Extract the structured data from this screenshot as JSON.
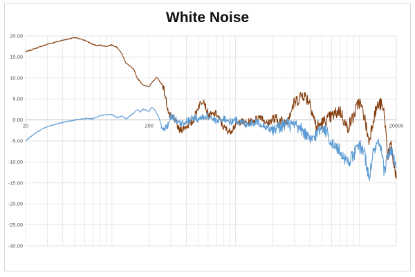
{
  "title": "White Noise",
  "colors": {
    "series_a": "#843C0C",
    "series_b": "#5B9BD5",
    "grid": "#d9d9d9",
    "axis": "#bfbfbf"
  },
  "chart_data": {
    "type": "line",
    "title": "White Noise",
    "xlabel": "",
    "ylabel": "",
    "x_scale": "log",
    "xlim": [
      20,
      20000
    ],
    "ylim": [
      -30,
      20
    ],
    "x_ticks": [
      "20",
      "200",
      "20000"
    ],
    "y_ticks": [
      "20.00",
      "15.00",
      "10.00",
      "5.00",
      "0.00",
      "-5.00",
      "-10.00",
      "-15.00",
      "-20.00",
      "-25.00",
      "-30.00"
    ],
    "grid": true,
    "legend": "none",
    "series": [
      {
        "color": "#843C0C",
        "x": [
          20,
          25,
          30,
          40,
          50,
          60,
          70,
          75,
          80,
          90,
          100,
          110,
          120,
          130,
          140,
          150,
          160,
          180,
          200,
          230,
          260,
          290,
          320,
          350,
          400,
          450,
          500,
          550,
          600,
          700,
          800,
          900,
          1000,
          1100,
          1200,
          1400,
          1600,
          1800,
          2000,
          2500,
          3000,
          3500,
          4000,
          4500,
          5000,
          6000,
          7000,
          8000,
          9000,
          10000,
          11000,
          12000,
          13000,
          14000,
          15000,
          16000,
          17000,
          18000,
          19000,
          20000
        ],
        "y": [
          16.2,
          17.2,
          18.0,
          19.0,
          19.6,
          19.0,
          18.0,
          17.7,
          17.8,
          17.5,
          17.9,
          17.3,
          15.8,
          13.5,
          12.8,
          12.0,
          10.0,
          8.2,
          8.0,
          10.2,
          8.0,
          1.0,
          0.4,
          -2.5,
          -1.5,
          -0.5,
          3.2,
          5.0,
          1.0,
          1.5,
          -1.8,
          -2.8,
          -1.2,
          -0.3,
          -0.8,
          -0.2,
          1.0,
          -1.0,
          0.2,
          -0.8,
          4.0,
          6.2,
          4.3,
          -1.8,
          -0.8,
          0.8,
          2.3,
          -2.0,
          0.8,
          4.5,
          1.0,
          -5.2,
          0.2,
          3.2,
          3.8,
          1.5,
          -8.0,
          -6.0,
          -10.2,
          -14.0
        ]
      },
      {
        "color": "#5B9BD5",
        "x": [
          20,
          22,
          25,
          30,
          35,
          40,
          50,
          60,
          70,
          80,
          90,
          100,
          110,
          120,
          130,
          140,
          150,
          160,
          170,
          180,
          190,
          200,
          210,
          220,
          240,
          260,
          280,
          300,
          320,
          350,
          400,
          450,
          500,
          600,
          700,
          800,
          900,
          1000,
          1200,
          1500,
          2000,
          2500,
          3000,
          3500,
          4000,
          4500,
          5000,
          5500,
          6000,
          7000,
          8000,
          9000,
          10000,
          11000,
          12000,
          13000,
          14000,
          15000,
          16000,
          17000,
          18000,
          20000
        ],
        "y": [
          -5.0,
          -4.0,
          -2.8,
          -1.6,
          -1.0,
          -0.6,
          0.0,
          0.3,
          0.3,
          1.0,
          1.2,
          1.3,
          0.5,
          1.0,
          0.2,
          1.0,
          1.6,
          2.5,
          1.9,
          2.6,
          2.2,
          2.0,
          3.0,
          2.5,
          0.5,
          -2.5,
          -1.5,
          1.0,
          0.5,
          -1.0,
          -0.3,
          0.5,
          0.2,
          1.0,
          -0.5,
          0.5,
          -0.5,
          0.0,
          -1.0,
          -0.5,
          -2.5,
          -1.0,
          -1.5,
          -2.5,
          -5.0,
          -3.5,
          -1.5,
          -3.0,
          -5.5,
          -7.5,
          -10.0,
          -8.5,
          -6.0,
          -7.5,
          -14.0,
          -8.0,
          -5.5,
          -7.0,
          -12.5,
          -8.5,
          -7.0,
          -11.5
        ]
      }
    ]
  }
}
